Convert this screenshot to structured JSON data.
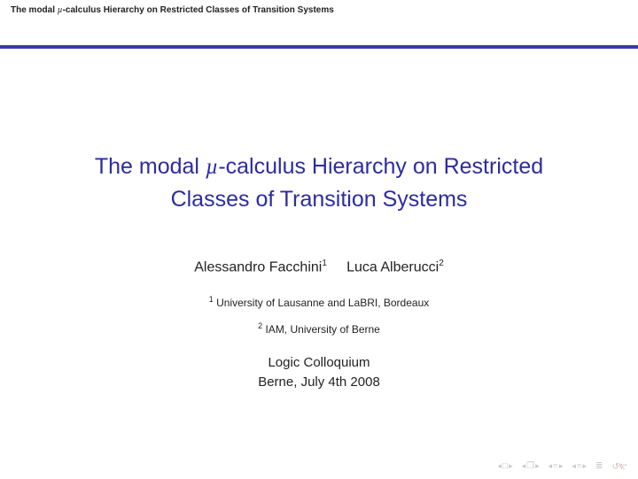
{
  "header": {
    "prefix": "The modal ",
    "mu": "µ",
    "suffix": "-calculus Hierarchy on Restricted Classes of Transition Systems"
  },
  "title": {
    "prefix": "The modal ",
    "mu": "µ",
    "mid": "-calculus Hierarchy on Restricted",
    "line2": "Classes of Transition Systems"
  },
  "authors": {
    "a1": "Alessandro Facchini",
    "sup1": "1",
    "a2": "Luca Alberucci",
    "sup2": "2"
  },
  "affil1": {
    "sup": "1",
    "text": " University of Lausanne and LaBRI, Bordeaux"
  },
  "affil2": {
    "sup": "2",
    "text": " IAM, University of Berne"
  },
  "venue": {
    "line1": "Logic Colloquium",
    "line2": "Berne, July 4th 2008"
  },
  "nav": {
    "left": "◂",
    "right": "▸",
    "box": "□",
    "doc": "❐",
    "eq": "≡",
    "eqbold": "≣",
    "reset": "↺९୯"
  },
  "colors": {
    "accent": "#2c2ca0",
    "rule": "#3a3aa8",
    "navfg": "#c8c8cc"
  }
}
